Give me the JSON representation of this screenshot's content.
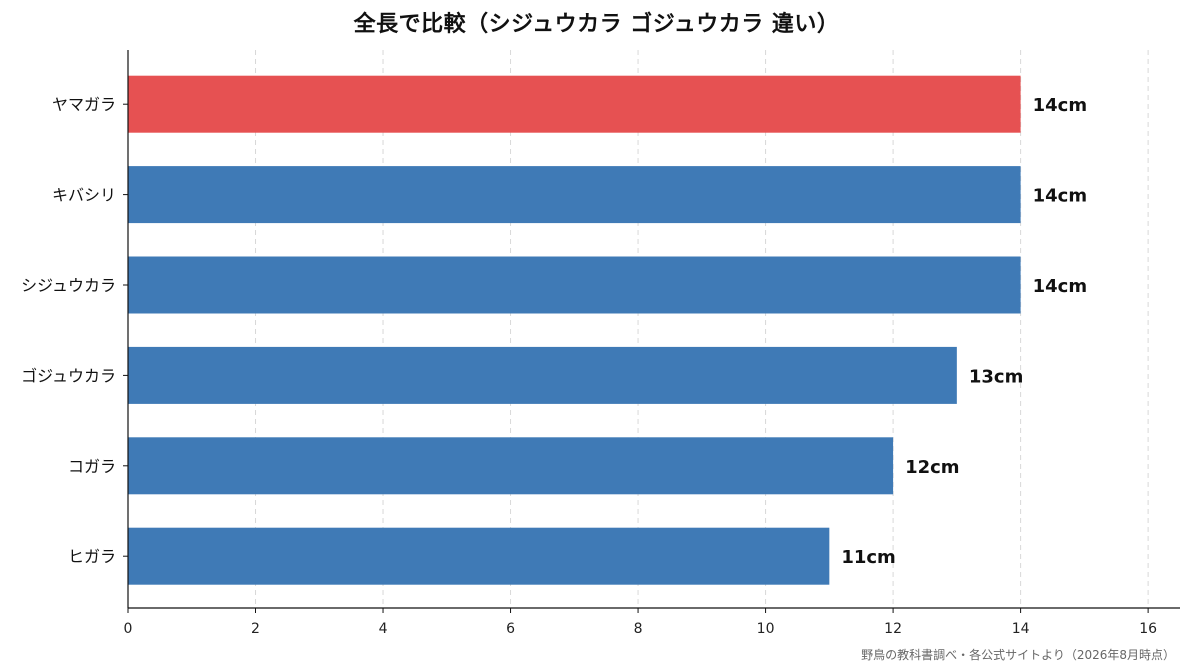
{
  "chart_data": {
    "type": "bar",
    "orientation": "horizontal",
    "title": "全長で比較（シジュウカラ ゴジュウカラ 違い）",
    "xlabel": "",
    "ylabel": "",
    "xlim": [
      0,
      16.5
    ],
    "x_ticks": [
      "0",
      "2",
      "4",
      "6",
      "8",
      "10",
      "12",
      "14",
      "16"
    ],
    "categories": [
      "ヤマガラ",
      "キバシリ",
      "シジュウカラ",
      "ゴジュウカラ",
      "コガラ",
      "ヒガラ"
    ],
    "values": [
      14,
      14,
      14,
      13,
      12,
      11
    ],
    "data_labels": [
      "14cm",
      "14cm",
      "14cm",
      "13cm",
      "12cm",
      "11cm"
    ],
    "unit": "cm",
    "highlight_index": 0,
    "colors": {
      "highlight": "#e65152",
      "default": "#3f7ab6",
      "grid": "#d8d8d8",
      "axis": "#111111"
    },
    "grid": "vertical dashed",
    "legend": "none",
    "source": "野鳥の教科書調べ・各公式サイトより（2026年8月時点）"
  }
}
